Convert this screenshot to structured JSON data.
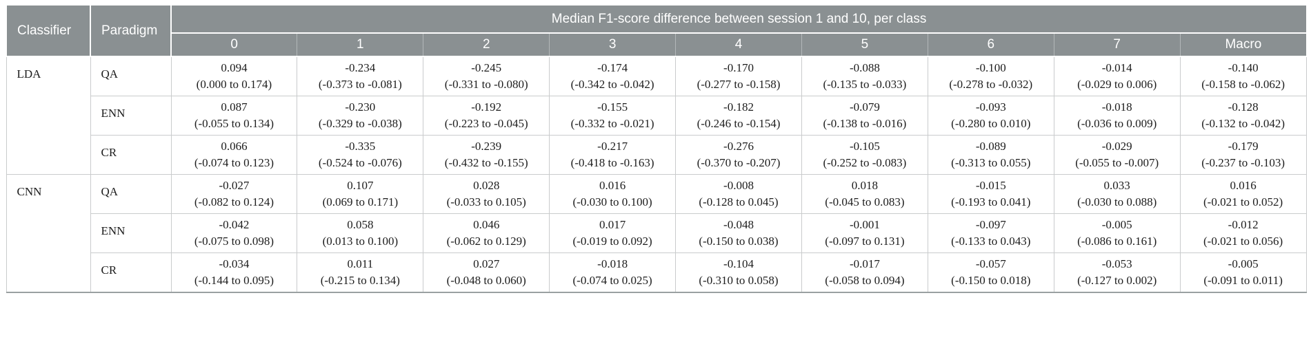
{
  "colors": {
    "header_bg": "#8a9092",
    "header_text": "#ffffff",
    "body_text": "#1c1c1c",
    "border_light": "#c9cbcc",
    "border_strong": "#9aa0a1"
  },
  "table": {
    "header": {
      "classifier": "Classifier",
      "paradigm": "Paradigm",
      "span_title": "Median F1-score difference between session 1 and 10, per class"
    },
    "classes": [
      "0",
      "1",
      "2",
      "3",
      "4",
      "5",
      "6",
      "7",
      "Macro"
    ],
    "groups": [
      {
        "classifier": "LDA",
        "rows": [
          {
            "paradigm": "QA",
            "cells": [
              {
                "value": "0.094",
                "ci": "(0.000 to 0.174)"
              },
              {
                "value": "-0.234",
                "ci": "(-0.373 to -0.081)"
              },
              {
                "value": "-0.245",
                "ci": "(-0.331 to -0.080)"
              },
              {
                "value": "-0.174",
                "ci": "(-0.342 to -0.042)"
              },
              {
                "value": "-0.170",
                "ci": "(-0.277 to -0.158)"
              },
              {
                "value": "-0.088",
                "ci": "(-0.135 to -0.033)"
              },
              {
                "value": "-0.100",
                "ci": "(-0.278 to -0.032)"
              },
              {
                "value": "-0.014",
                "ci": "(-0.029 to 0.006)"
              },
              {
                "value": "-0.140",
                "ci": "(-0.158 to -0.062)"
              }
            ]
          },
          {
            "paradigm": "ENN",
            "cells": [
              {
                "value": "0.087",
                "ci": "(-0.055 to 0.134)"
              },
              {
                "value": "-0.230",
                "ci": "(-0.329 to -0.038)"
              },
              {
                "value": "-0.192",
                "ci": "(-0.223 to -0.045)"
              },
              {
                "value": "-0.155",
                "ci": "(-0.332 to -0.021)"
              },
              {
                "value": "-0.182",
                "ci": "(-0.246 to -0.154)"
              },
              {
                "value": "-0.079",
                "ci": "(-0.138 to -0.016)"
              },
              {
                "value": "-0.093",
                "ci": "(-0.280 to 0.010)"
              },
              {
                "value": "-0.018",
                "ci": "(-0.036 to 0.009)"
              },
              {
                "value": "-0.128",
                "ci": "(-0.132 to -0.042)"
              }
            ]
          },
          {
            "paradigm": "CR",
            "cells": [
              {
                "value": "0.066",
                "ci": "(-0.074 to 0.123)"
              },
              {
                "value": "-0.335",
                "ci": "(-0.524 to -0.076)"
              },
              {
                "value": "-0.239",
                "ci": "(-0.432 to -0.155)"
              },
              {
                "value": "-0.217",
                "ci": "(-0.418 to -0.163)"
              },
              {
                "value": "-0.276",
                "ci": "(-0.370 to -0.207)"
              },
              {
                "value": "-0.105",
                "ci": "(-0.252 to -0.083)"
              },
              {
                "value": "-0.089",
                "ci": "(-0.313 to 0.055)"
              },
              {
                "value": "-0.029",
                "ci": "(-0.055 to -0.007)"
              },
              {
                "value": "-0.179",
                "ci": "(-0.237 to -0.103)"
              }
            ]
          }
        ]
      },
      {
        "classifier": "CNN",
        "rows": [
          {
            "paradigm": "QA",
            "cells": [
              {
                "value": "-0.027",
                "ci": "(-0.082 to 0.124)"
              },
              {
                "value": "0.107",
                "ci": "(0.069 to 0.171)"
              },
              {
                "value": "0.028",
                "ci": "(-0.033 to 0.105)"
              },
              {
                "value": "0.016",
                "ci": "(-0.030 to 0.100)"
              },
              {
                "value": "-0.008",
                "ci": "(-0.128 to 0.045)"
              },
              {
                "value": "0.018",
                "ci": "(-0.045 to 0.083)"
              },
              {
                "value": "-0.015",
                "ci": "(-0.193 to 0.041)"
              },
              {
                "value": "0.033",
                "ci": "(-0.030 to 0.088)"
              },
              {
                "value": "0.016",
                "ci": "(-0.021 to 0.052)"
              }
            ]
          },
          {
            "paradigm": "ENN",
            "cells": [
              {
                "value": "-0.042",
                "ci": "(-0.075 to 0.098)"
              },
              {
                "value": "0.058",
                "ci": "(0.013 to 0.100)"
              },
              {
                "value": "0.046",
                "ci": "(-0.062 to 0.129)"
              },
              {
                "value": "0.017",
                "ci": "(-0.019 to 0.092)"
              },
              {
                "value": "-0.048",
                "ci": "(-0.150 to 0.038)"
              },
              {
                "value": "-0.001",
                "ci": "(-0.097 to 0.131)"
              },
              {
                "value": "-0.097",
                "ci": "(-0.133 to 0.043)"
              },
              {
                "value": "-0.005",
                "ci": "(-0.086 to 0.161)"
              },
              {
                "value": "-0.012",
                "ci": "(-0.021 to 0.056)"
              }
            ]
          },
          {
            "paradigm": "CR",
            "cells": [
              {
                "value": "-0.034",
                "ci": "(-0.144 to 0.095)"
              },
              {
                "value": "0.011",
                "ci": "(-0.215 to 0.134)"
              },
              {
                "value": "0.027",
                "ci": "(-0.048 to 0.060)"
              },
              {
                "value": "-0.018",
                "ci": "(-0.074 to 0.025)"
              },
              {
                "value": "-0.104",
                "ci": "(-0.310 to 0.058)"
              },
              {
                "value": "-0.017",
                "ci": "(-0.058 to 0.094)"
              },
              {
                "value": "-0.057",
                "ci": "(-0.150 to 0.018)"
              },
              {
                "value": "-0.053",
                "ci": "(-0.127 to 0.002)"
              },
              {
                "value": "-0.005",
                "ci": "(-0.091 to 0.011)"
              }
            ]
          }
        ]
      }
    ]
  }
}
